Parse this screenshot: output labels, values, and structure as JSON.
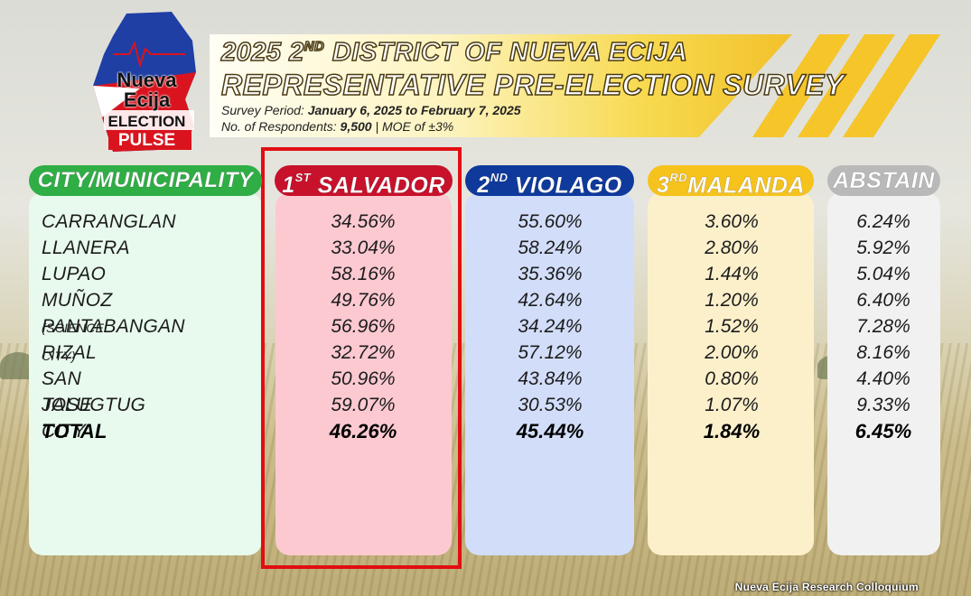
{
  "logo": {
    "line1": "Nueva",
    "line2": "Ecija",
    "line3": "ELECTION",
    "line4": "PULSE"
  },
  "banner": {
    "title1_prefix": "2025 2",
    "title1_sup": "ND",
    "title1_suffix": " DISTRICT OF NUEVA ECIJA",
    "title2": "REPRESENTATIVE PRE-ELECTION SURVEY",
    "period_label": "Survey Period: ",
    "period_value": "January 6, 2025 to February 7, 2025",
    "respondents_label": "No. of Respondents: ",
    "respondents_value": "9,500",
    "moe": " | MOE of ±3%"
  },
  "headers": {
    "municipality": "CITY/MUNICIPALITY",
    "c1_rank": "1",
    "c1_sup": "ST",
    "c1_name": " SALVADOR",
    "c2_rank": "2",
    "c2_sup": "ND",
    "c2_name": " VIOLAGO",
    "c3_rank": "3",
    "c3_sup": "RD",
    "c3_name": "MALANDA",
    "abstain": "ABSTAIN"
  },
  "rows": [
    {
      "name": "CARRANGLAN",
      "note": "",
      "salvador": "34.56%",
      "violago": "55.60%",
      "malanda": "3.60%",
      "abstain": "6.24%"
    },
    {
      "name": "LLANERA",
      "note": "",
      "salvador": "33.04%",
      "violago": "58.24%",
      "malanda": "2.80%",
      "abstain": "5.92%"
    },
    {
      "name": "LUPAO",
      "note": "",
      "salvador": "58.16%",
      "violago": "35.36%",
      "malanda": "1.44%",
      "abstain": "5.04%"
    },
    {
      "name": "MUÑOZ ",
      "note": "(SCIENCE CITY)",
      "salvador": "49.76%",
      "violago": "42.64%",
      "malanda": "1.20%",
      "abstain": "6.40%"
    },
    {
      "name": "PANTABANGAN",
      "note": "",
      "salvador": "56.96%",
      "violago": "34.24%",
      "malanda": "1.52%",
      "abstain": "7.28%"
    },
    {
      "name": "RIZAL",
      "note": "",
      "salvador": "32.72%",
      "violago": "57.12%",
      "malanda": "2.00%",
      "abstain": "8.16%"
    },
    {
      "name": "SAN JOSE CITY",
      "note": "",
      "salvador": "50.96%",
      "violago": "43.84%",
      "malanda": "0.80%",
      "abstain": "4.40%"
    },
    {
      "name": "TALUGTUG",
      "note": "",
      "salvador": "59.07%",
      "violago": "30.53%",
      "malanda": "1.07%",
      "abstain": "9.33%"
    }
  ],
  "total": {
    "name": "TOTAL",
    "salvador": "46.26%",
    "violago": "45.44%",
    "malanda": "1.84%",
    "abstain": "6.45%"
  },
  "footer": "Nueva Ecija Research Colloquium",
  "colors": {
    "salvador": "#c8112b",
    "violago": "#0f3a9c",
    "malanda": "#f6c21c",
    "abstain": "#b9b9b9",
    "municipality": "#2fae45",
    "highlight": "#e10e12"
  }
}
